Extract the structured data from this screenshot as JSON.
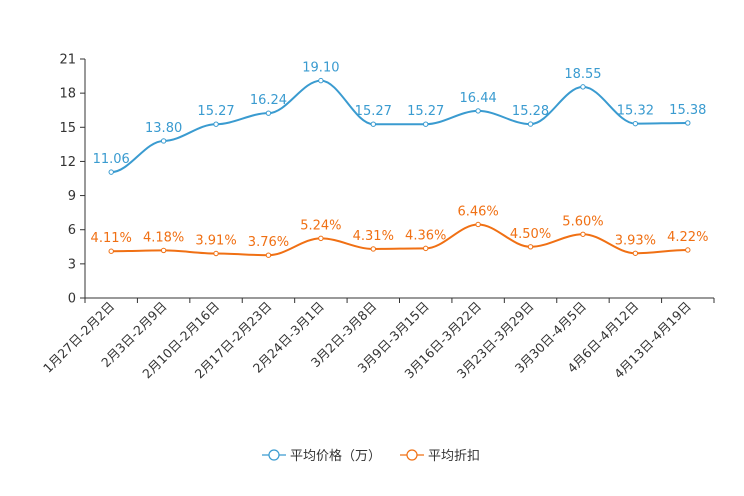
{
  "chart_data": {
    "type": "line",
    "title": "",
    "xlabel": "",
    "ylabel": "",
    "ylim": [
      0,
      21
    ],
    "yticks": [
      0,
      3,
      6,
      9,
      12,
      15,
      18,
      21
    ],
    "grid": false,
    "legend_position": "bottom-center",
    "categories": [
      "1月27日-2月2日",
      "2月3日-2月9日",
      "2月10日-2月16日",
      "2月17日-2月23日",
      "2月24日-3月1日",
      "3月2日-3月8日",
      "3月9日-3月15日",
      "3月16日-3月22日",
      "3月23日-3月29日",
      "3月30日-4月5日",
      "4月6日-4月12日",
      "4月13日-4月19日"
    ],
    "series": [
      {
        "name": "平均价格（万）",
        "color": "#3a9bd0",
        "values": [
          11.06,
          13.8,
          15.27,
          16.24,
          19.1,
          15.27,
          15.27,
          16.44,
          15.28,
          18.55,
          15.32,
          15.38
        ],
        "labels": [
          "11.06",
          "13.80",
          "15.27",
          "16.24",
          "19.10",
          "15.27",
          "15.27",
          "16.44",
          "15.28",
          "18.55",
          "15.32",
          "15.38"
        ]
      },
      {
        "name": "平均折扣",
        "color": "#f07014",
        "values": [
          4.11,
          4.18,
          3.91,
          3.76,
          5.24,
          4.31,
          4.36,
          6.46,
          4.5,
          5.6,
          3.93,
          4.22
        ],
        "labels": [
          "4.11%",
          "4.18%",
          "3.91%",
          "3.76%",
          "5.24%",
          "4.31%",
          "4.36%",
          "6.46%",
          "4.50%",
          "5.60%",
          "3.93%",
          "4.22%"
        ]
      }
    ]
  }
}
